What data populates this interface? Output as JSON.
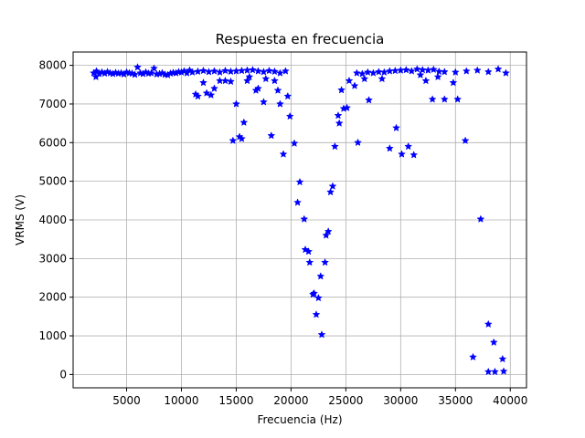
{
  "chart_data": {
    "type": "scatter",
    "title": "Respuesta en frecuencia",
    "xlabel": "Frecuencia (Hz)",
    "ylabel": "VRMS (V)",
    "marker": "star",
    "grid": true,
    "xlim": [
      120,
      41480
    ],
    "ylim": [
      -345,
      8345
    ],
    "xticks": [
      5000,
      10000,
      15000,
      20000,
      25000,
      30000,
      35000,
      40000
    ],
    "yticks": [
      0,
      1000,
      2000,
      3000,
      4000,
      5000,
      6000,
      7000,
      8000
    ],
    "series": [
      {
        "color": "#0000ff",
        "x": [
          2000,
          2200,
          2250,
          2500,
          2750,
          3000,
          3250,
          3500,
          3750,
          4000,
          4250,
          4500,
          4750,
          5000,
          5250,
          5500,
          5750,
          6000,
          6250,
          6500,
          6750,
          7000,
          7250,
          7500,
          7750,
          8000,
          8250,
          8500,
          8750,
          9000,
          9250,
          9500,
          9750,
          10000,
          10250,
          10500,
          10750,
          11000,
          11500,
          12000,
          12500,
          13000,
          13500,
          14000,
          14500,
          15000,
          15500,
          16000,
          16500,
          17000,
          17500,
          18000,
          18500,
          19000,
          19500,
          26000,
          26500,
          27000,
          27500,
          28000,
          28500,
          29000,
          29500,
          30000,
          30500,
          31000,
          31500,
          32000,
          32500,
          33000,
          33500,
          34000,
          35000,
          36000,
          37000,
          38000,
          38900,
          39600,
          11300,
          11500,
          12000,
          12300,
          12700,
          13000,
          13500,
          14000,
          14500,
          14700,
          15000,
          15300,
          15500,
          15700,
          16000,
          16200,
          16800,
          17000,
          17500,
          17700,
          18200,
          18500,
          18800,
          19000,
          19300,
          19700,
          19900,
          20300,
          20600,
          20800,
          21200,
          21300,
          21600,
          21700,
          22000,
          22100,
          22300,
          22500,
          22700,
          22800,
          23100,
          23200,
          23400,
          23600,
          23800,
          24000,
          24300,
          24400,
          24600,
          24800,
          25100,
          25300,
          25800,
          26100,
          26700,
          27100,
          28300,
          29000,
          29600,
          30100,
          30700,
          31200,
          31800,
          32300,
          32900,
          33400,
          34000,
          34800,
          35200,
          35900,
          36600,
          37300,
          38000,
          38000,
          38500,
          38600,
          39300,
          39400
        ],
        "values": [
          7800,
          7700,
          7850,
          7780,
          7820,
          7790,
          7830,
          7800,
          7780,
          7810,
          7790,
          7800,
          7770,
          7820,
          7800,
          7790,
          7760,
          7950,
          7800,
          7780,
          7820,
          7790,
          7800,
          7920,
          7770,
          7780,
          7800,
          7760,
          7750,
          7790,
          7810,
          7800,
          7830,
          7820,
          7850,
          7800,
          7870,
          7820,
          7840,
          7860,
          7830,
          7850,
          7820,
          7860,
          7840,
          7850,
          7860,
          7870,
          7880,
          7850,
          7830,
          7860,
          7840,
          7800,
          7850,
          7800,
          7780,
          7820,
          7800,
          7830,
          7820,
          7850,
          7860,
          7870,
          7880,
          7850,
          7900,
          7880,
          7870,
          7890,
          7840,
          7830,
          7820,
          7850,
          7870,
          7830,
          7900,
          7800,
          7250,
          7200,
          7550,
          7280,
          7230,
          7400,
          7600,
          7600,
          7580,
          6050,
          7000,
          6150,
          6100,
          6520,
          7600,
          7700,
          7350,
          7400,
          7050,
          7650,
          6180,
          7600,
          7350,
          7000,
          5700,
          7200,
          6680,
          5980,
          4450,
          4980,
          4020,
          3230,
          3180,
          2900,
          2070,
          2100,
          1550,
          1980,
          2540,
          1030,
          2900,
          3600,
          3700,
          4720,
          4870,
          5900,
          6700,
          6500,
          7360,
          6880,
          6900,
          7600,
          7470,
          6000,
          7650,
          7100,
          7650,
          5850,
          6380,
          5700,
          5900,
          5680,
          7750,
          7600,
          7120,
          7700,
          7120,
          7550,
          7120,
          6050,
          450,
          4020,
          1300,
          70,
          830,
          70,
          400,
          80
        ]
      }
    ]
  }
}
